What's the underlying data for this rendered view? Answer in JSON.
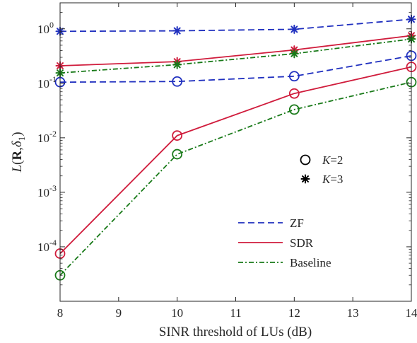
{
  "chart_data": {
    "type": "line",
    "title": "",
    "xlabel": "SINR threshold of LUs (dB)",
    "ylabel": {
      "base": "L",
      "open": "(",
      "bold": "R",
      "sep": ",",
      "delta": "δ",
      "sub": "1",
      "close": ")"
    },
    "xlim": [
      8,
      14
    ],
    "ylim": [
      1e-05,
      3
    ],
    "yscale": "log",
    "grid": false,
    "x": [
      8,
      10,
      12,
      14
    ],
    "x_ticks": [
      "8",
      "9",
      "10",
      "11",
      "12",
      "13",
      "14"
    ],
    "y_ticks": [
      {
        "base": "10",
        "exp": "-4",
        "value": 0.0001
      },
      {
        "base": "10",
        "exp": "-3",
        "value": 0.001
      },
      {
        "base": "10",
        "exp": "-2",
        "value": 0.01
      },
      {
        "base": "10",
        "exp": "-1",
        "value": 0.1
      },
      {
        "base": "10",
        "exp": "0",
        "value": 1
      }
    ],
    "series": [
      {
        "name": "ZF",
        "K": 2,
        "color": "#1f2fbf",
        "dash": "dashed",
        "marker": "circle",
        "values": [
          0.105,
          0.108,
          0.135,
          0.32
        ]
      },
      {
        "name": "ZF",
        "K": 3,
        "color": "#1f2fbf",
        "dash": "dashed",
        "marker": "star",
        "values": [
          0.9,
          0.92,
          0.98,
          1.5
        ]
      },
      {
        "name": "SDR",
        "K": 2,
        "color": "#d01c3c",
        "dash": "solid",
        "marker": "circle",
        "values": [
          7.5e-05,
          0.011,
          0.065,
          0.2
        ]
      },
      {
        "name": "SDR",
        "K": 3,
        "color": "#d01c3c",
        "dash": "solid",
        "marker": "star",
        "values": [
          0.21,
          0.25,
          0.41,
          0.75
        ]
      },
      {
        "name": "Baseline",
        "K": 2,
        "color": "#197a19",
        "dash": "dashdot",
        "marker": "circle",
        "values": [
          3e-05,
          0.005,
          0.033,
          0.105
        ]
      },
      {
        "name": "Baseline",
        "K": 3,
        "color": "#197a19",
        "dash": "dashdot",
        "marker": "star",
        "values": [
          0.155,
          0.22,
          0.35,
          0.65
        ]
      }
    ],
    "marker_legend": [
      {
        "marker": "circle",
        "var": "K",
        "eq": "=2"
      },
      {
        "marker": "star",
        "var": "K",
        "eq": "=3"
      }
    ],
    "line_legend": [
      {
        "name": "ZF",
        "color": "#1f2fbf",
        "dash": "dashed"
      },
      {
        "name": "SDR",
        "color": "#d01c3c",
        "dash": "solid"
      },
      {
        "name": "Baseline",
        "color": "#197a19",
        "dash": "dashdot"
      }
    ]
  }
}
